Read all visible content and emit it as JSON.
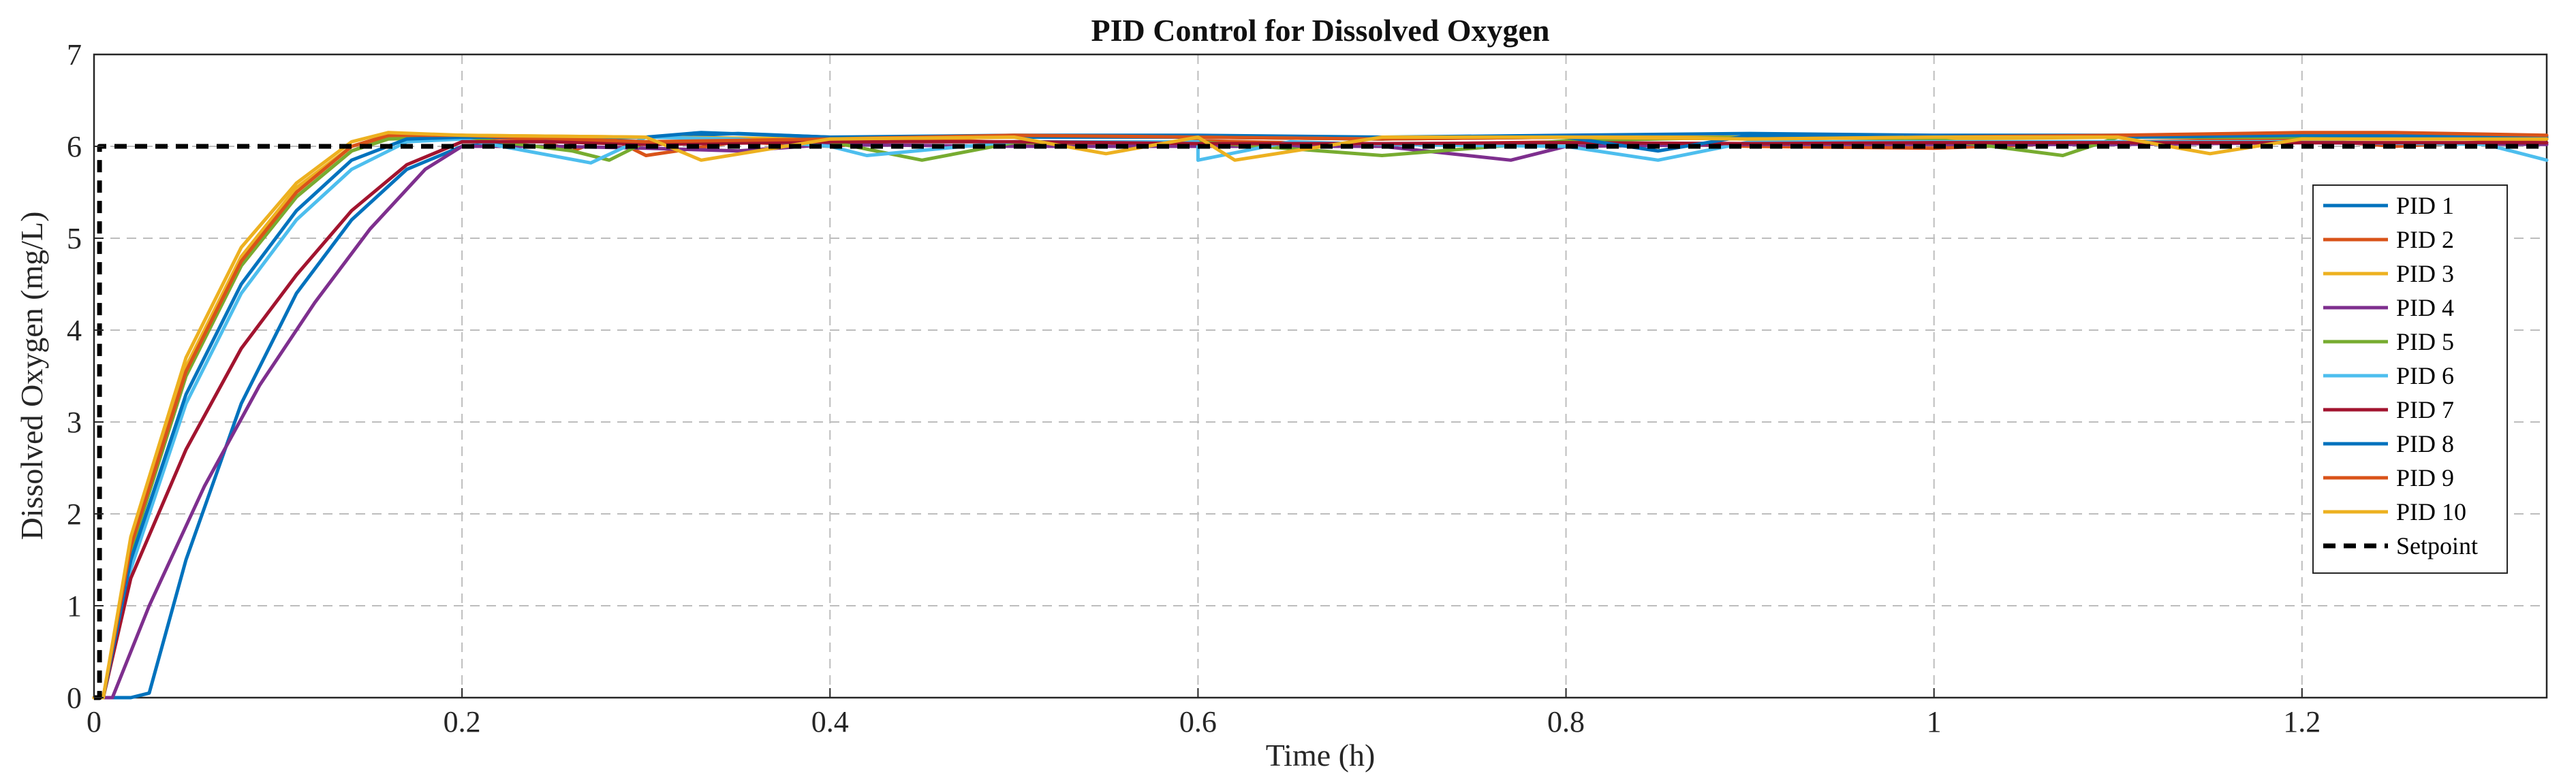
{
  "chart_data": {
    "type": "line",
    "title": "PID Control for Dissolved Oxygen",
    "xlabel": "Time (h)",
    "ylabel": "Dissolved Oxygen (mg/L)",
    "xlim": [
      0,
      1.333
    ],
    "ylim": [
      0,
      7
    ],
    "xticks": [
      0,
      0.2,
      0.4,
      0.6,
      0.8,
      1,
      1.2
    ],
    "xtick_labels": [
      "0",
      "0.2",
      "0.4",
      "0.6",
      "0.8",
      "1",
      "1.2"
    ],
    "yticks": [
      0,
      1,
      2,
      3,
      4,
      5,
      6,
      7
    ],
    "ytick_labels": [
      "0",
      "1",
      "2",
      "3",
      "4",
      "5",
      "6",
      "7"
    ],
    "grid": true,
    "legend_position": "right",
    "series": [
      {
        "name": "PID 1",
        "color": "#0072BD",
        "x": [
          0,
          0.02,
          0.03,
          0.05,
          0.08,
          0.11,
          0.14,
          0.17,
          0.2,
          0.25,
          0.3,
          0.35,
          0.4,
          0.5,
          0.6,
          0.7,
          0.8,
          0.9,
          1.0,
          1.1,
          1.2,
          1.333
        ],
        "y": [
          0,
          0,
          0.05,
          1.5,
          3.2,
          4.4,
          5.2,
          5.75,
          6.0,
          6.08,
          6.1,
          6.14,
          6.1,
          6.12,
          6.12,
          6.1,
          6.12,
          6.14,
          6.12,
          6.12,
          6.12,
          6.1
        ]
      },
      {
        "name": "PID 2",
        "color": "#D95319",
        "x": [
          0,
          0.005,
          0.02,
          0.05,
          0.08,
          0.11,
          0.14,
          0.16,
          0.2,
          0.24,
          0.26,
          0.28,
          0.3,
          0.35,
          0.4,
          0.45,
          0.5,
          0.55,
          0.6,
          0.7,
          0.8,
          0.9,
          1.0,
          1.1,
          1.2,
          1.25,
          1.333
        ],
        "y": [
          0,
          0,
          1.6,
          3.5,
          4.7,
          5.45,
          5.95,
          6.1,
          6.1,
          6.08,
          5.95,
          6.1,
          5.9,
          6.05,
          6.0,
          6.08,
          6.04,
          6.0,
          6.06,
          6.02,
          6.05,
          6.0,
          5.98,
          6.05,
          6.08,
          6.0,
          6.08
        ]
      },
      {
        "name": "PID 3",
        "color": "#EDB120",
        "x": [
          0,
          0.005,
          0.02,
          0.05,
          0.08,
          0.11,
          0.14,
          0.16,
          0.2,
          0.3,
          0.4,
          0.5,
          0.6,
          0.7,
          0.8,
          0.9,
          1.0,
          1.1,
          1.2,
          1.333
        ],
        "y": [
          0,
          0,
          1.7,
          3.6,
          4.8,
          5.55,
          6.0,
          6.12,
          6.12,
          6.1,
          6.08,
          6.1,
          6.1,
          6.08,
          6.1,
          6.1,
          6.08,
          6.1,
          6.1,
          6.08
        ]
      },
      {
        "name": "PID 4",
        "color": "#7E2F8E",
        "x": [
          0,
          0.01,
          0.03,
          0.06,
          0.09,
          0.12,
          0.15,
          0.18,
          0.2,
          0.25,
          0.3,
          0.35,
          0.4,
          0.5,
          0.6,
          0.7,
          0.77,
          0.8,
          0.9,
          1.0,
          1.1,
          1.2,
          1.333
        ],
        "y": [
          0,
          0,
          1.0,
          2.3,
          3.4,
          4.3,
          5.1,
          5.75,
          6.0,
          6.0,
          5.98,
          5.95,
          6.02,
          6.0,
          6.0,
          6.0,
          5.85,
          6.0,
          6.02,
          6.02,
          6.02,
          6.04,
          6.02
        ]
      },
      {
        "name": "PID 5",
        "color": "#77AC30",
        "x": [
          0,
          0.005,
          0.02,
          0.05,
          0.08,
          0.11,
          0.14,
          0.16,
          0.2,
          0.26,
          0.28,
          0.3,
          0.4,
          0.45,
          0.5,
          0.6,
          0.7,
          0.8,
          0.9,
          1.0,
          1.07,
          1.1,
          1.2,
          1.333
        ],
        "y": [
          0,
          0,
          1.6,
          3.5,
          4.7,
          5.45,
          5.95,
          6.08,
          6.1,
          5.95,
          5.85,
          6.05,
          6.05,
          5.85,
          6.04,
          6.05,
          5.9,
          6.06,
          6.1,
          6.08,
          5.9,
          6.1,
          6.1,
          6.1
        ]
      },
      {
        "name": "PID 6",
        "color": "#4DBEEE",
        "x": [
          0,
          0.005,
          0.02,
          0.05,
          0.08,
          0.11,
          0.14,
          0.17,
          0.2,
          0.27,
          0.3,
          0.35,
          0.4,
          0.42,
          0.5,
          0.6,
          0.6,
          0.65,
          0.7,
          0.8,
          0.85,
          0.9,
          1.0,
          1.1,
          1.2,
          1.3,
          1.333
        ],
        "y": [
          0,
          0,
          1.4,
          3.2,
          4.4,
          5.2,
          5.75,
          6.05,
          6.08,
          5.82,
          6.1,
          6.08,
          6.0,
          5.9,
          6.05,
          6.05,
          5.85,
          6.05,
          6.02,
          6.0,
          5.85,
          6.05,
          6.05,
          6.05,
          6.05,
          6.02,
          5.85
        ]
      },
      {
        "name": "PID 7",
        "color": "#A2142F",
        "x": [
          0,
          0.005,
          0.02,
          0.05,
          0.08,
          0.11,
          0.14,
          0.17,
          0.2,
          0.25,
          0.3,
          0.4,
          0.5,
          0.6,
          0.7,
          0.8,
          0.9,
          1.0,
          1.1,
          1.2,
          1.333
        ],
        "y": [
          0,
          0,
          1.3,
          2.7,
          3.8,
          4.6,
          5.3,
          5.8,
          6.05,
          6.05,
          6.02,
          6.05,
          6.05,
          6.03,
          6.03,
          6.04,
          6.03,
          6.04,
          6.04,
          6.04,
          6.04
        ]
      },
      {
        "name": "PID 8",
        "color": "#0072BD",
        "x": [
          0,
          0.005,
          0.02,
          0.05,
          0.08,
          0.11,
          0.14,
          0.17,
          0.2,
          0.3,
          0.33,
          0.4,
          0.5,
          0.6,
          0.7,
          0.8,
          0.85,
          0.9,
          1.0,
          1.1,
          1.2,
          1.333
        ],
        "y": [
          0,
          0,
          1.5,
          3.3,
          4.5,
          5.3,
          5.85,
          6.08,
          6.1,
          6.1,
          6.15,
          6.1,
          6.1,
          6.1,
          6.08,
          6.1,
          5.95,
          6.12,
          6.1,
          6.1,
          6.12,
          6.1
        ]
      },
      {
        "name": "PID 9",
        "color": "#D95319",
        "x": [
          0,
          0.005,
          0.02,
          0.05,
          0.08,
          0.11,
          0.14,
          0.16,
          0.2,
          0.3,
          0.4,
          0.5,
          0.6,
          0.7,
          0.8,
          0.9,
          1.0,
          1.1,
          1.2,
          1.25,
          1.333
        ],
        "y": [
          0,
          0,
          1.65,
          3.55,
          4.75,
          5.5,
          6.0,
          6.12,
          6.12,
          6.05,
          6.08,
          6.12,
          6.1,
          6.08,
          6.1,
          6.08,
          6.1,
          6.12,
          6.15,
          6.15,
          6.12
        ]
      },
      {
        "name": "PID 10",
        "color": "#EDB120",
        "x": [
          0,
          0.005,
          0.02,
          0.05,
          0.08,
          0.11,
          0.14,
          0.16,
          0.2,
          0.3,
          0.33,
          0.4,
          0.5,
          0.55,
          0.6,
          0.62,
          0.7,
          0.8,
          0.9,
          1.0,
          1.1,
          1.15,
          1.2,
          1.333
        ],
        "y": [
          0,
          0,
          1.75,
          3.7,
          4.9,
          5.6,
          6.05,
          6.15,
          6.12,
          6.1,
          5.85,
          6.08,
          6.1,
          5.92,
          6.1,
          5.85,
          6.1,
          6.1,
          6.08,
          6.1,
          6.1,
          5.92,
          6.08,
          6.08
        ]
      },
      {
        "name": "Setpoint",
        "color": "#000000",
        "dashed": true,
        "x": [
          0,
          0.003,
          0.003,
          1.333
        ],
        "y": [
          0,
          0,
          6,
          6
        ]
      }
    ]
  }
}
